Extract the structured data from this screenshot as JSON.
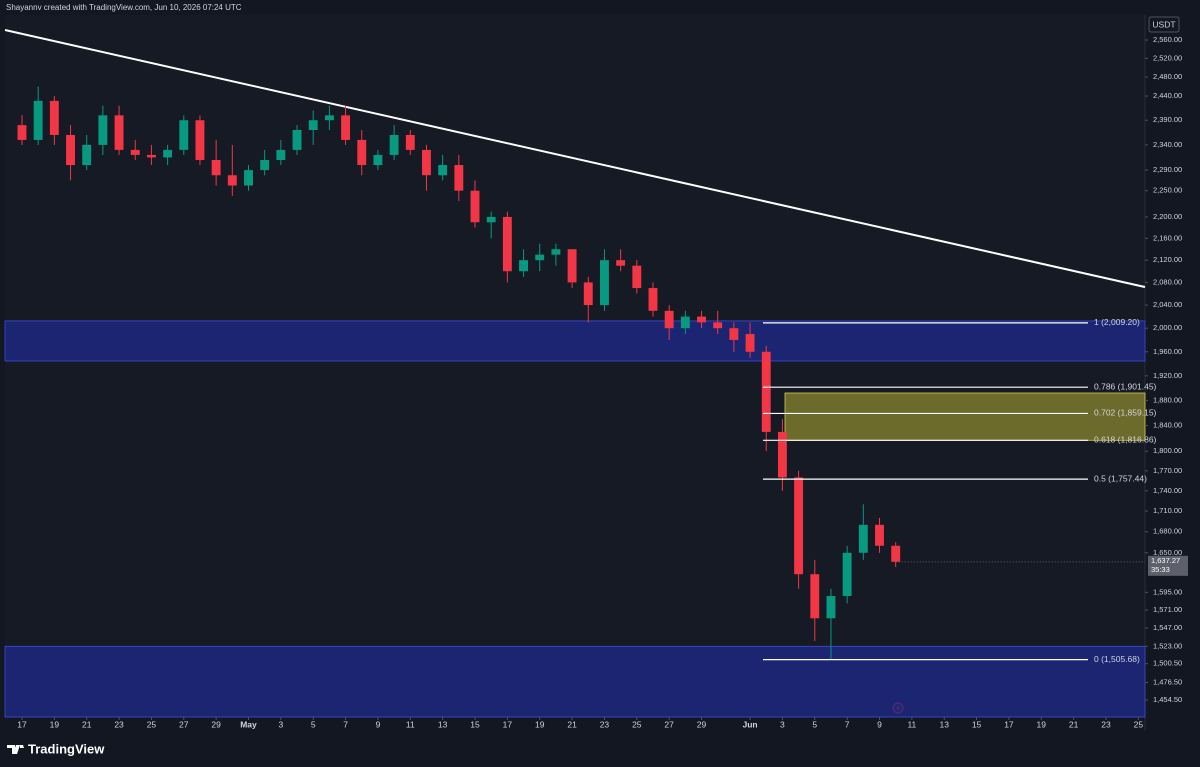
{
  "chart_data": {
    "type": "candlestick",
    "credit": "Shayannv created with TradingView.com, Jun 10, 2026 07:24 UTC",
    "currency": "USDT",
    "brand": "TradingView",
    "log_scale": true,
    "up_color": "#089981",
    "down_color": "#f23645",
    "x": [
      0,
      1,
      2,
      3,
      4,
      5,
      6,
      7,
      8,
      9,
      10,
      11,
      12,
      13,
      14,
      15,
      16,
      17,
      18,
      19,
      20,
      21,
      22,
      23,
      24,
      25,
      26,
      27,
      28,
      29,
      30,
      31,
      32,
      33,
      34,
      35,
      36,
      37,
      38,
      39,
      40,
      41,
      42,
      43,
      44,
      45,
      46,
      47,
      48,
      49,
      50,
      51,
      52,
      53,
      54
    ],
    "candles": {
      "open": [
        2380,
        2350,
        2430,
        2360,
        2300,
        2340,
        2400,
        2330,
        2320,
        2315,
        2330,
        2390,
        2310,
        2280,
        2260,
        2290,
        2310,
        2330,
        2370,
        2390,
        2400,
        2350,
        2300,
        2320,
        2360,
        2330,
        2280,
        2300,
        2250,
        2190,
        2200,
        2100,
        2120,
        2130,
        2140,
        2080,
        2040,
        2120,
        2110,
        2070,
        2030,
        2000,
        2020,
        2010,
        2000,
        1990,
        1960,
        1830,
        1760,
        1620,
        1560,
        1590,
        1650,
        1690,
        1660
      ],
      "high": [
        2400,
        2460,
        2440,
        2380,
        2360,
        2420,
        2420,
        2350,
        2340,
        2340,
        2400,
        2400,
        2350,
        2340,
        2300,
        2330,
        2350,
        2380,
        2410,
        2420,
        2420,
        2370,
        2330,
        2380,
        2370,
        2340,
        2320,
        2320,
        2270,
        2210,
        2210,
        2140,
        2150,
        2150,
        2140,
        2090,
        2140,
        2140,
        2120,
        2080,
        2040,
        2030,
        2030,
        2030,
        2010,
        2010,
        1970,
        1850,
        1770,
        1640,
        1600,
        1660,
        1720,
        1700,
        1665
      ],
      "low": [
        2340,
        2340,
        2340,
        2270,
        2290,
        2320,
        2320,
        2310,
        2300,
        2300,
        2320,
        2300,
        2260,
        2240,
        2250,
        2280,
        2300,
        2320,
        2340,
        2370,
        2340,
        2280,
        2290,
        2310,
        2320,
        2250,
        2270,
        2230,
        2180,
        2160,
        2080,
        2090,
        2100,
        2110,
        2070,
        2010,
        2030,
        2100,
        2060,
        2020,
        1980,
        1990,
        2000,
        1990,
        1960,
        1950,
        1800,
        1740,
        1600,
        1530,
        1505.68,
        1580,
        1640,
        1650,
        1630
      ],
      "close": [
        2350,
        2430,
        2360,
        2300,
        2340,
        2400,
        2330,
        2320,
        2315,
        2330,
        2390,
        2310,
        2280,
        2260,
        2290,
        2310,
        2330,
        2370,
        2390,
        2400,
        2350,
        2300,
        2320,
        2360,
        2330,
        2280,
        2300,
        2250,
        2190,
        2200,
        2100,
        2120,
        2130,
        2140,
        2080,
        2040,
        2120,
        2110,
        2070,
        2030,
        2000,
        2020,
        2010,
        2000,
        1980,
        1960,
        1830,
        1760,
        1620,
        1560,
        1590,
        1650,
        1690,
        1660,
        1637.27
      ]
    },
    "last_price": {
      "value": 1637.27,
      "label": "1,637.27"
    },
    "countdown": "35:33",
    "trendline": {
      "color": "#ffffff",
      "x": [
        -1.05,
        69.41
      ],
      "y": [
        2582,
        2071.8
      ]
    },
    "zones": [
      {
        "color": "#1e2a8c",
        "range": [
          1944.6,
          2012.5
        ]
      },
      {
        "color": "#1e2a8c",
        "range": [
          1433.5,
          1523
        ]
      },
      {
        "color": "#7d7a2e",
        "range": [
          1816.86,
          1892
        ]
      }
    ],
    "fib_color": "#ffffff",
    "fib_levels": [
      {
        "value": 2009.2,
        "label": "1 (2,009.20)"
      },
      {
        "value": 1901.45,
        "label": "0.786 (1,901.45)"
      },
      {
        "value": 1859.15,
        "label": "0.702 (1,859.15)"
      },
      {
        "value": 1816.86,
        "label": "0.618 (1,816.86)"
      },
      {
        "value": 1757.44,
        "label": "0.5 (1,757.44)"
      },
      {
        "value": 1505.68,
        "label": "0 (1,505.68)"
      }
    ],
    "xlim": [
      -1.05,
      69.41
    ],
    "ylim": [
      1433.5,
      2615.4
    ],
    "xticks": [
      {
        "value": 0,
        "label": "17"
      },
      {
        "value": 2,
        "label": "19"
      },
      {
        "value": 4,
        "label": "21"
      },
      {
        "value": 6,
        "label": "23"
      },
      {
        "value": 8,
        "label": "25"
      },
      {
        "value": 10,
        "label": "27"
      },
      {
        "value": 12,
        "label": "29"
      },
      {
        "value": 14,
        "label": "May"
      },
      {
        "value": 16,
        "label": "3"
      },
      {
        "value": 18,
        "label": "5"
      },
      {
        "value": 20,
        "label": "7"
      },
      {
        "value": 22,
        "label": "9"
      },
      {
        "value": 24,
        "label": "11"
      },
      {
        "value": 26,
        "label": "13"
      },
      {
        "value": 28,
        "label": "15"
      },
      {
        "value": 30,
        "label": "17"
      },
      {
        "value": 32,
        "label": "19"
      },
      {
        "value": 34,
        "label": "21"
      },
      {
        "value": 36,
        "label": "23"
      },
      {
        "value": 38,
        "label": "25"
      },
      {
        "value": 40,
        "label": "27"
      },
      {
        "value": 42,
        "label": "29"
      },
      {
        "value": 45,
        "label": "Jun"
      },
      {
        "value": 47,
        "label": "3"
      },
      {
        "value": 49,
        "label": "5"
      },
      {
        "value": 51,
        "label": "7"
      },
      {
        "value": 53,
        "label": "9"
      },
      {
        "value": 55,
        "label": "11"
      },
      {
        "value": 57,
        "label": "13"
      },
      {
        "value": 59,
        "label": "15"
      },
      {
        "value": 61,
        "label": "17"
      },
      {
        "value": 63,
        "label": "19"
      },
      {
        "value": 65,
        "label": "21"
      },
      {
        "value": 67,
        "label": "23"
      },
      {
        "value": 69,
        "label": "25"
      }
    ],
    "yticks": [
      {
        "value": 2560,
        "label": "2,560.00"
      },
      {
        "value": 2520,
        "label": "2,520.00"
      },
      {
        "value": 2480,
        "label": "2,480.00"
      },
      {
        "value": 2440,
        "label": "2,440.00"
      },
      {
        "value": 2390,
        "label": "2,390.00"
      },
      {
        "value": 2340,
        "label": "2,340.00"
      },
      {
        "value": 2290,
        "label": "2,290.00"
      },
      {
        "value": 2250,
        "label": "2,250.00"
      },
      {
        "value": 2200,
        "label": "2,200.00"
      },
      {
        "value": 2160,
        "label": "2,160.00"
      },
      {
        "value": 2120,
        "label": "2,120.00"
      },
      {
        "value": 2080,
        "label": "2,080.00"
      },
      {
        "value": 2040,
        "label": "2,040.00"
      },
      {
        "value": 2000,
        "label": "2,000.00"
      },
      {
        "value": 1960,
        "label": "1,960.00"
      },
      {
        "value": 1920,
        "label": "1,920.00"
      },
      {
        "value": 1880,
        "label": "1,880.00"
      },
      {
        "value": 1840,
        "label": "1,840.00"
      },
      {
        "value": 1800,
        "label": "1,800.00"
      },
      {
        "value": 1770,
        "label": "1,770.00"
      },
      {
        "value": 1740,
        "label": "1,740.00"
      },
      {
        "value": 1710,
        "label": "1,710.00"
      },
      {
        "value": 1680,
        "label": "1,680.00"
      },
      {
        "value": 1650,
        "label": "1,650.00"
      },
      {
        "value": 1595,
        "label": "1,595.00"
      },
      {
        "value": 1571,
        "label": "1,571.00"
      },
      {
        "value": 1547,
        "label": "1,547.00"
      },
      {
        "value": 1523,
        "label": "1,523.00"
      },
      {
        "value": 1500.5,
        "label": "1,500.50"
      },
      {
        "value": 1476.5,
        "label": "1,476.50"
      },
      {
        "value": 1454.5,
        "label": "1,454.50"
      }
    ]
  }
}
